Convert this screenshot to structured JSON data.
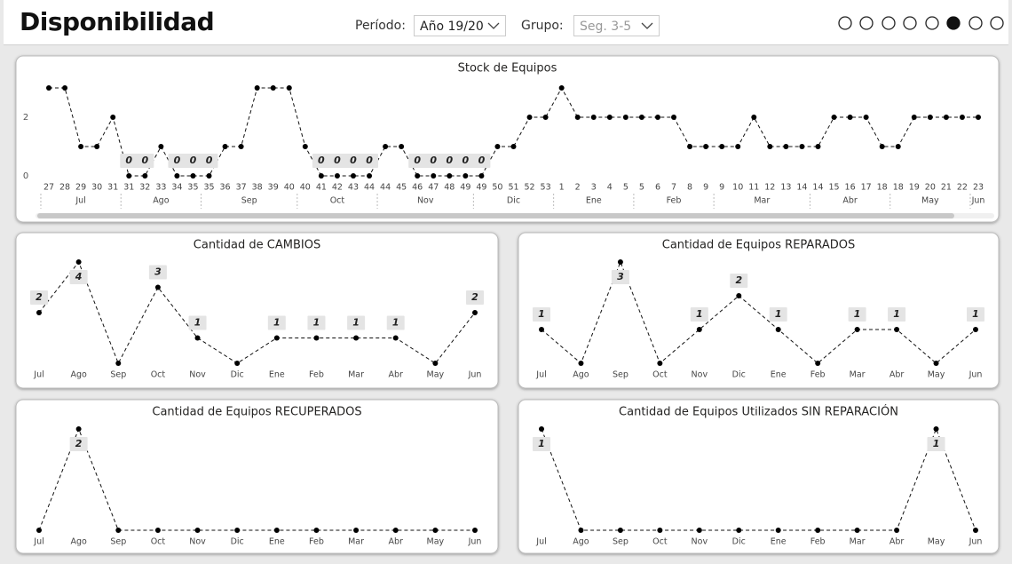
{
  "header": {
    "title": "Disponibilidad",
    "filters": [
      {
        "label": "Período:",
        "value": "Año 19/20"
      },
      {
        "label": "Grupo:",
        "value": "Seg. 3-5"
      }
    ]
  },
  "chart_data": [
    {
      "type": "line",
      "title": "Stock de Equipos",
      "categories": [
        "27",
        "28",
        "29",
        "30",
        "31",
        "31",
        "32",
        "33",
        "34",
        "35",
        "35",
        "36",
        "37",
        "38",
        "39",
        "40",
        "40",
        "41",
        "42",
        "43",
        "44",
        "44",
        "45",
        "46",
        "47",
        "48",
        "49",
        "49",
        "50",
        "51",
        "52",
        "53",
        "1",
        "2",
        "3",
        "4",
        "5",
        "5",
        "6",
        "7",
        "8",
        "9",
        "9",
        "10",
        "11",
        "12",
        "13",
        "14",
        "14",
        "15",
        "16",
        "17",
        "18",
        "18",
        "19",
        "20",
        "21",
        "22",
        "23"
      ],
      "months": [
        "Jul",
        "Jul",
        "Jul",
        "Jul",
        "Jul",
        "Ago",
        "Ago",
        "Ago",
        "Ago",
        "Ago",
        "Sep",
        "Sep",
        "Sep",
        "Sep",
        "Sep",
        "Sep",
        "Oct",
        "Oct",
        "Oct",
        "Oct",
        "Oct",
        "Nov",
        "Nov",
        "Nov",
        "Nov",
        "Nov",
        "Nov",
        "Dic",
        "Dic",
        "Dic",
        "Dic",
        "Dic",
        "Ene",
        "Ene",
        "Ene",
        "Ene",
        "Ene",
        "Feb",
        "Feb",
        "Feb",
        "Feb",
        "Feb",
        "Mar",
        "Mar",
        "Mar",
        "Mar",
        "Mar",
        "Mar",
        "Abr",
        "Abr",
        "Abr",
        "Abr",
        "Abr",
        "May",
        "May",
        "May",
        "May",
        "May",
        "Jun"
      ],
      "values": [
        3,
        3,
        1,
        1,
        2,
        0,
        0,
        1,
        0,
        0,
        0,
        1,
        1,
        3,
        3,
        3,
        1,
        0,
        0,
        0,
        0,
        1,
        1,
        0,
        0,
        0,
        0,
        0,
        1,
        1,
        2,
        2,
        3,
        2,
        2,
        2,
        2,
        2,
        2,
        2,
        1,
        1,
        1,
        1,
        2,
        1,
        1,
        1,
        1,
        2,
        2,
        2,
        1,
        1,
        2,
        2,
        2,
        2,
        2
      ],
      "data_labels": [
        null,
        null,
        null,
        null,
        null,
        0,
        0,
        null,
        0,
        0,
        0,
        null,
        null,
        null,
        null,
        null,
        null,
        0,
        0,
        0,
        0,
        null,
        null,
        0,
        0,
        0,
        0,
        0,
        null,
        null,
        null,
        null,
        null,
        null,
        null,
        null,
        null,
        null,
        null,
        null,
        null,
        null,
        null,
        null,
        null,
        null,
        null,
        null,
        null,
        null,
        null,
        null,
        null,
        null,
        null,
        null,
        null,
        null,
        null
      ],
      "ylim": [
        0,
        3
      ],
      "yticks": [
        0,
        2
      ]
    },
    {
      "type": "line",
      "title": "Cantidad de CAMBIOS",
      "categories": [
        "Jul",
        "Ago",
        "Sep",
        "Oct",
        "Nov",
        "Dic",
        "Ene",
        "Feb",
        "Mar",
        "Abr",
        "May",
        "Jun"
      ],
      "values": [
        2,
        4,
        0,
        3,
        1,
        0,
        1,
        1,
        1,
        1,
        0,
        2
      ],
      "data_labels": [
        2,
        4,
        null,
        3,
        1,
        null,
        1,
        1,
        1,
        1,
        null,
        2
      ]
    },
    {
      "type": "line",
      "title": "Cantidad de Equipos REPARADOS",
      "categories": [
        "Jul",
        "Ago",
        "Sep",
        "Oct",
        "Nov",
        "Dic",
        "Ene",
        "Feb",
        "Mar",
        "Abr",
        "May",
        "Jun"
      ],
      "values": [
        1,
        0,
        3,
        0,
        1,
        2,
        1,
        0,
        1,
        1,
        0,
        1
      ],
      "data_labels": [
        1,
        null,
        3,
        null,
        1,
        2,
        1,
        null,
        1,
        1,
        null,
        1
      ]
    },
    {
      "type": "line",
      "title": "Cantidad de Equipos RECUPERADOS",
      "categories": [
        "Jul",
        "Ago",
        "Sep",
        "Oct",
        "Nov",
        "Dic",
        "Ene",
        "Feb",
        "Mar",
        "Abr",
        "May",
        "Jun"
      ],
      "values": [
        0,
        2,
        0,
        0,
        0,
        0,
        0,
        0,
        0,
        0,
        0,
        0
      ],
      "data_labels": [
        null,
        2,
        null,
        null,
        null,
        null,
        null,
        null,
        null,
        null,
        null,
        null
      ]
    },
    {
      "type": "line",
      "title": "Cantidad de Equipos Utilizados SIN REPARACIÓN",
      "categories": [
        "Jul",
        "Ago",
        "Sep",
        "Oct",
        "Nov",
        "Dic",
        "Ene",
        "Feb",
        "Mar",
        "Abr",
        "May",
        "Jun"
      ],
      "values": [
        1,
        0,
        0,
        0,
        0,
        0,
        0,
        0,
        0,
        0,
        1,
        0
      ],
      "data_labels": [
        1,
        null,
        null,
        null,
        null,
        null,
        null,
        null,
        null,
        null,
        1,
        null
      ]
    }
  ]
}
